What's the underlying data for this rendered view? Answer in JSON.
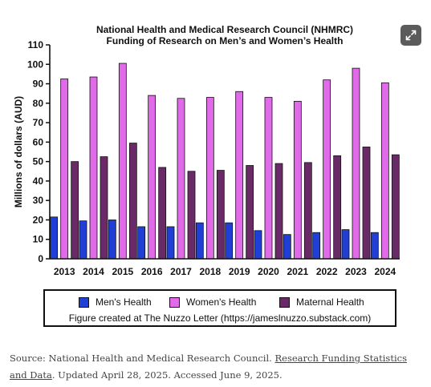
{
  "chart_data": {
    "type": "bar",
    "title": "National Health and Medical Research Council (NHMRC)",
    "subtitle": "Funding of Research on Men’s and Women’s Health",
    "ylabel": "Millions of dollars (AUD)",
    "xlabel": "",
    "ylim": [
      0,
      110
    ],
    "yticks": [
      "0",
      "10",
      "20",
      "30",
      "40",
      "50",
      "60",
      "70",
      "80",
      "90",
      "100",
      "110"
    ],
    "categories": [
      "2013",
      "2014",
      "2015",
      "2016",
      "2017",
      "2018",
      "2019",
      "2020",
      "2021",
      "2022",
      "2023",
      "2024"
    ],
    "series": [
      {
        "name": "Men's Health",
        "color": "#1f3fd6",
        "values": [
          21.5,
          19.5,
          20,
          16.5,
          16.5,
          18.5,
          18.5,
          14.5,
          12.5,
          13.5,
          15,
          13.5
        ]
      },
      {
        "name": "Women's Health",
        "color": "#e06ae8",
        "values": [
          92.5,
          93.5,
          100.5,
          84,
          82.5,
          83,
          86,
          83,
          81,
          92,
          98,
          90.5
        ]
      },
      {
        "name": "Maternal Health",
        "color": "#6a2a68",
        "values": [
          50,
          52.5,
          59.5,
          47,
          45,
          45.5,
          48,
          49,
          49.5,
          53,
          57.5,
          53.5
        ]
      }
    ],
    "grid": false,
    "legend_position": "bottom"
  },
  "legend": {
    "credit": "Figure created at The Nuzzo Letter (https://jameslnuzzo.substack.com)"
  },
  "caption": {
    "prefix": "Source: National Health and Medical Research Council. ",
    "link_text": "Research Funding Statistics and Data",
    "suffix": ". Updated April 28, 2025. Accessed June 9, 2025."
  },
  "icons": {
    "expand": "expand-icon"
  }
}
